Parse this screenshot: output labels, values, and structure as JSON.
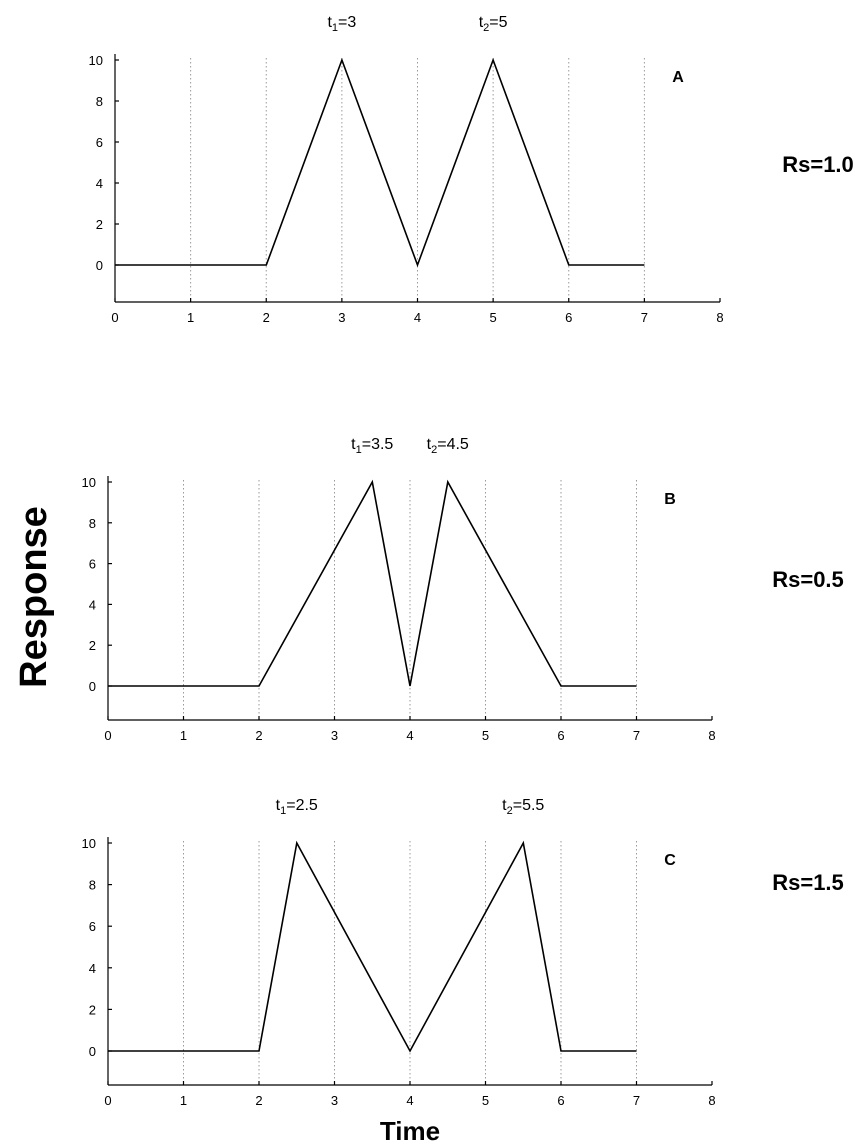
{
  "axis_titles": {
    "ylabel": "Response",
    "xlabel": "Time"
  },
  "chart_data": [
    {
      "type": "line",
      "panel": "A",
      "side_label": "Rs=1.0",
      "annotations": [
        {
          "base": "t",
          "sub": "1",
          "rest": "=3",
          "x": 3
        },
        {
          "base": "t",
          "sub": "2",
          "rest": "=5",
          "x": 5
        }
      ],
      "xlim": [
        0,
        8
      ],
      "ylim": [
        -2,
        10
      ],
      "xticks": [
        0,
        1,
        2,
        3,
        4,
        5,
        6,
        7,
        8
      ],
      "yticks": [
        0,
        2,
        4,
        6,
        8,
        10
      ],
      "grid_x": [
        1,
        2,
        3,
        4,
        5,
        6,
        7
      ],
      "series": [
        {
          "x": [
            0,
            2,
            3,
            4,
            5,
            6,
            7
          ],
          "y": [
            0,
            0,
            10,
            0,
            10,
            0,
            0
          ]
        }
      ]
    },
    {
      "type": "line",
      "panel": "B",
      "side_label": "Rs=0.5",
      "annotations": [
        {
          "base": "t",
          "sub": "1",
          "rest": "=3.5",
          "x": 3.5
        },
        {
          "base": "t",
          "sub": "2",
          "rest": "=4.5",
          "x": 4.5
        }
      ],
      "xlim": [
        0,
        8
      ],
      "ylim": [
        -2,
        10
      ],
      "xticks": [
        0,
        1,
        2,
        3,
        4,
        5,
        6,
        7,
        8
      ],
      "yticks": [
        0,
        2,
        4,
        6,
        8,
        10
      ],
      "grid_x": [
        1,
        2,
        3,
        4,
        5,
        6,
        7
      ],
      "series": [
        {
          "x": [
            0,
            2,
            3.5,
            4,
            4.5,
            6,
            7
          ],
          "y": [
            0,
            0,
            10,
            0,
            10,
            0,
            0
          ]
        }
      ]
    },
    {
      "type": "line",
      "panel": "C",
      "side_label": "Rs=1.5",
      "annotations": [
        {
          "base": "t",
          "sub": "1",
          "rest": "=2.5",
          "x": 2.5
        },
        {
          "base": "t",
          "sub": "2",
          "rest": "=5.5",
          "x": 5.5
        }
      ],
      "xlim": [
        0,
        8
      ],
      "ylim": [
        -2,
        10
      ],
      "xticks": [
        0,
        1,
        2,
        3,
        4,
        5,
        6,
        7,
        8
      ],
      "yticks": [
        0,
        2,
        4,
        6,
        8,
        10
      ],
      "grid_x": [
        1,
        2,
        3,
        4,
        5,
        6,
        7
      ],
      "series": [
        {
          "x": [
            0,
            2,
            2.5,
            4,
            5.5,
            6,
            7
          ],
          "y": [
            0,
            0,
            10,
            0,
            10,
            0,
            0
          ]
        }
      ]
    }
  ]
}
